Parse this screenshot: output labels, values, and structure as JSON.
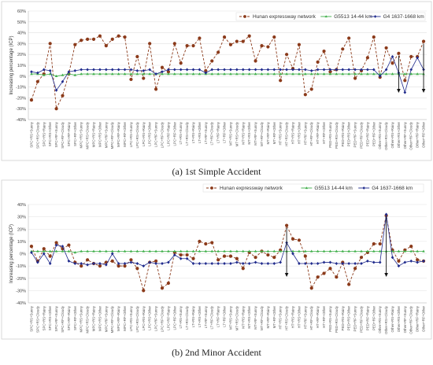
{
  "chart_data": [
    {
      "type": "line",
      "caption": "(a) 1st Simple Accident",
      "ylabel": "Increasing percentage (ICP)",
      "yticks": [
        "60%",
        "50%",
        "40%",
        "30%",
        "20%",
        "10%",
        "0%",
        "-10%",
        "-20%",
        "-30%",
        "-40%"
      ],
      "ylim": [
        -0.4,
        0.6
      ],
      "grid": true,
      "legend_position": "top-right",
      "categories": [
        "SPC+RS+Sunny",
        "SPC+RS+Cloudy",
        "SPC+RS+Rainy",
        "SPC+RS+Other",
        "SPC+RF+Sunny",
        "SPC+RF+Cloudy",
        "SPC+RF+Rainy",
        "SPC+RF+Other",
        "MPC+RS+Sunny",
        "MPC+RS+Cloudy",
        "MPC+RS+Rainy",
        "MPC+RS+Other",
        "MPC+RF+Sunny",
        "MPC+RF+Cloudy",
        "MPC+RF+Rainy",
        "MPC+RF+Other",
        "LPC+RS+Sunny",
        "LPC+RS+Cloudy",
        "LPC+RS+Rainy",
        "LPC+RS+Other",
        "LPC+RF+Sunny",
        "LPC+RF+Cloudy",
        "LPC+RF+Rainy",
        "LPC+RF+Other",
        "LT+RS+Sunny",
        "LT+RS+Cloudy",
        "LT+RS+Rainy",
        "LT+RS+Other",
        "LT+RF+Sunny",
        "LT+RF+Cloudy",
        "LT+RF+Rainy",
        "LT+RF+Other",
        "MT+RS+Sunny",
        "MT+RS+Cloudy",
        "MT+RS+Rainy",
        "MT+RS+Other",
        "MT+RF+Sunny",
        "MT+RF+Cloudy",
        "MT+RF+Rainy",
        "MT+RF+Other",
        "HT+RS+Sunny",
        "HT+RS+Cloudy",
        "HT+RS+Rainy",
        "HT+RS+Other",
        "HT+RF+Sunny",
        "HT+RF+Cloudy",
        "HT+RF+Rainy",
        "HT+RF+Other",
        "PED+RS+Sunny",
        "PED+RS+Cloudy",
        "PED+RS+Rainy",
        "PED+RS+Other",
        "PED+RF+Sunny",
        "PED+RF+Cloudy",
        "PED+RF+Rainy",
        "PED+RF+Other",
        "Other+RS+Sunny",
        "Other+RS+Cloudy",
        "Other+RS+Rainy",
        "Other+RS+Other",
        "Other+RF+Sunny",
        "Other+RF+Cloudy",
        "Other+RF+Rainy",
        "Other+RF+Other"
      ],
      "arrows_at": [
        59,
        63
      ],
      "series": [
        {
          "name": "Hunan expressway network",
          "color": "#8b3a1a",
          "marker": "circle",
          "dash": "3,2",
          "values": [
            -0.22,
            -0.05,
            0.02,
            0.3,
            -0.3,
            -0.18,
            0.02,
            0.29,
            0.33,
            0.34,
            0.34,
            0.37,
            0.28,
            0.34,
            0.37,
            0.36,
            -0.03,
            0.18,
            -0.02,
            0.3,
            -0.12,
            0.08,
            0.04,
            0.3,
            0.12,
            0.28,
            0.28,
            0.35,
            0.05,
            0.14,
            0.22,
            0.36,
            0.29,
            0.32,
            0.32,
            0.37,
            0.14,
            0.28,
            0.27,
            0.36,
            -0.04,
            0.2,
            0.07,
            0.29,
            -0.17,
            -0.12,
            0.13,
            0.23,
            0.04,
            0.06,
            0.25,
            0.35,
            -0.02,
            0.05,
            0.17,
            0.36,
            -0.01,
            0.26,
            0.12,
            0.21,
            -0.04,
            0.18,
            0.18,
            0.32
          ]
        },
        {
          "name": "G5513 14-44 km",
          "color": "#3fae49",
          "marker": "triangle",
          "dash": "",
          "values": [
            0.02,
            0.02,
            0.01,
            0.02,
            0.0,
            0.01,
            0.02,
            0.01,
            0.02,
            0.02,
            0.02,
            0.02,
            0.02,
            0.02,
            0.02,
            0.02,
            0.02,
            0.02,
            0.02,
            0.02,
            0.02,
            0.02,
            0.02,
            0.02,
            0.02,
            0.02,
            0.02,
            0.02,
            0.02,
            0.02,
            0.02,
            0.02,
            0.02,
            0.02,
            0.02,
            0.02,
            0.02,
            0.02,
            0.02,
            0.02,
            0.02,
            0.02,
            0.02,
            0.02,
            0.02,
            0.02,
            0.02,
            0.02,
            0.02,
            0.02,
            0.02,
            0.02,
            0.02,
            0.02,
            0.02,
            0.02,
            0.02,
            0.02,
            0.02,
            0.02,
            0.02,
            0.02,
            0.02,
            0.02
          ]
        },
        {
          "name": "G4 1637-1668 km",
          "color": "#1f2a8c",
          "marker": "diamond",
          "dash": "",
          "values": [
            0.04,
            0.03,
            0.06,
            0.05,
            -0.13,
            -0.05,
            0.04,
            0.05,
            0.06,
            0.06,
            0.06,
            0.06,
            0.06,
            0.06,
            0.06,
            0.06,
            0.06,
            0.05,
            0.05,
            0.06,
            0.02,
            0.04,
            0.06,
            0.06,
            0.06,
            0.06,
            0.06,
            0.06,
            0.03,
            0.06,
            0.06,
            0.06,
            0.06,
            0.06,
            0.06,
            0.06,
            0.06,
            0.06,
            0.06,
            0.06,
            0.06,
            0.06,
            0.06,
            0.06,
            0.06,
            0.05,
            0.06,
            0.06,
            0.06,
            0.06,
            0.06,
            0.06,
            0.06,
            0.06,
            0.06,
            0.06,
            0.0,
            0.06,
            0.18,
            0.03,
            -0.15,
            0.06,
            0.17,
            0.06
          ]
        }
      ]
    },
    {
      "type": "line",
      "caption": "(b) 2nd Minor Accident",
      "ylabel": "Increasing percentage (ICP)",
      "yticks": [
        "40%",
        "30%",
        "20%",
        "10%",
        "0%",
        "-10%",
        "-20%",
        "-30%",
        "-40%"
      ],
      "ylim": [
        -0.4,
        0.4
      ],
      "grid": true,
      "legend_position": "top-right",
      "categories": [
        "SPC+RS+Sunny",
        "SPC+RS+Cloudy",
        "SPC+RS+Rainy",
        "SPC+RS+Other",
        "SPC+RF+Sunny",
        "SPC+RF+Cloudy",
        "SPC+RF+Rainy",
        "SPC+RF+Other",
        "MPC+RS+Sunny",
        "MPC+RS+Cloudy",
        "MPC+RS+Rainy",
        "MPC+RS+Other",
        "MPC+RF+Sunny",
        "MPC+RF+Cloudy",
        "MPC+RF+Rainy",
        "MPC+RF+Other",
        "LPC+RS+Sunny",
        "LPC+RS+Cloudy",
        "LPC+RS+Rainy",
        "LPC+RS+Other",
        "LPC+RF+Sunny",
        "LPC+RF+Cloudy",
        "LPC+RF+Rainy",
        "LPC+RF+Other",
        "LT+RS+Sunny",
        "LT+RS+Cloudy",
        "LT+RS+Rainy",
        "LT+RS+Other",
        "LT+RF+Sunny",
        "LT+RF+Cloudy",
        "LT+RF+Rainy",
        "LT+RF+Other",
        "MT+RS+Sunny",
        "MT+RS+Cloudy",
        "MT+RS+Rainy",
        "MT+RS+Other",
        "MT+RF+Sunny",
        "MT+RF+Cloudy",
        "MT+RF+Rainy",
        "MT+RF+Other",
        "HT+RS+Sunny",
        "HT+RS+Cloudy",
        "HT+RS+Rainy",
        "HT+RS+Other",
        "HT+RF+Sunny",
        "HT+RF+Cloudy",
        "HT+RF+Rainy",
        "HT+RF+Other",
        "PED+RS+Sunny",
        "PED+RS+Cloudy",
        "PED+RS+Rainy",
        "PED+RS+Other",
        "PED+RF+Sunny",
        "PED+RF+Cloudy",
        "PED+RF+Rainy",
        "PED+RF+Other",
        "Other+RS+Sunny",
        "Other+RS+Cloudy",
        "Other+RS+Rainy",
        "Other+RS+Other",
        "Other+RF+Sunny",
        "Other+RF+Cloudy",
        "Other+RF+Rainy",
        "Other+RF+Other"
      ],
      "arrows_at": [
        41,
        57
      ],
      "series": [
        {
          "name": "Hunan expressway network",
          "color": "#8b3a1a",
          "marker": "circle",
          "dash": "3,2",
          "values": [
            0.06,
            -0.06,
            0.04,
            -0.02,
            0.09,
            0.04,
            0.07,
            -0.07,
            -0.1,
            -0.05,
            -0.08,
            -0.1,
            -0.07,
            -0.06,
            -0.1,
            -0.1,
            -0.05,
            -0.12,
            -0.3,
            -0.07,
            -0.06,
            -0.28,
            -0.24,
            0.01,
            -0.01,
            -0.01,
            -0.04,
            0.1,
            0.08,
            0.09,
            -0.05,
            -0.02,
            -0.02,
            -0.04,
            -0.12,
            0.01,
            -0.03,
            0.02,
            -0.01,
            -0.03,
            0.03,
            0.23,
            0.12,
            0.11,
            -0.02,
            -0.28,
            -0.19,
            -0.16,
            -0.12,
            -0.19,
            -0.07,
            -0.25,
            -0.12,
            -0.03,
            0.01,
            0.08,
            0.08,
            0.31,
            0.03,
            -0.06,
            0.03,
            0.06,
            -0.05,
            -0.06
          ]
        },
        {
          "name": "G5513 14-44 km",
          "color": "#3fae49",
          "marker": "triangle",
          "dash": "",
          "values": [
            0.02,
            0.02,
            0.02,
            0.02,
            0.02,
            0.02,
            0.02,
            0.01,
            0.02,
            0.02,
            0.02,
            0.02,
            0.02,
            0.02,
            0.02,
            0.02,
            0.02,
            0.02,
            0.02,
            0.02,
            0.02,
            0.02,
            0.02,
            0.02,
            0.02,
            0.02,
            0.02,
            0.02,
            0.02,
            0.02,
            0.02,
            0.02,
            0.02,
            0.02,
            0.02,
            0.02,
            0.02,
            0.02,
            0.02,
            0.02,
            0.02,
            0.02,
            0.02,
            0.02,
            0.02,
            0.02,
            0.02,
            0.02,
            0.02,
            0.02,
            0.02,
            0.02,
            0.02,
            0.02,
            0.02,
            0.02,
            0.02,
            0.02,
            0.02,
            0.02,
            0.02,
            0.02,
            0.02,
            0.02
          ]
        },
        {
          "name": "G4 1637-1668 km",
          "color": "#1f2a8c",
          "marker": "diamond",
          "dash": "",
          "values": [
            0.01,
            -0.07,
            0.0,
            -0.08,
            0.07,
            0.06,
            -0.06,
            -0.08,
            -0.08,
            -0.09,
            -0.08,
            -0.08,
            -0.09,
            0.0,
            -0.08,
            -0.08,
            -0.07,
            -0.08,
            -0.1,
            -0.07,
            -0.08,
            -0.08,
            -0.07,
            -0.01,
            -0.04,
            -0.04,
            -0.08,
            -0.08,
            -0.08,
            -0.08,
            -0.08,
            -0.08,
            -0.08,
            -0.07,
            -0.08,
            -0.08,
            -0.07,
            -0.08,
            -0.08,
            -0.08,
            -0.07,
            0.09,
            0.0,
            -0.08,
            -0.08,
            -0.08,
            -0.08,
            -0.07,
            -0.07,
            -0.08,
            -0.08,
            -0.08,
            -0.08,
            -0.08,
            -0.06,
            -0.07,
            -0.07,
            0.32,
            -0.03,
            -0.1,
            -0.07,
            -0.06,
            -0.07,
            -0.06
          ]
        }
      ]
    }
  ]
}
